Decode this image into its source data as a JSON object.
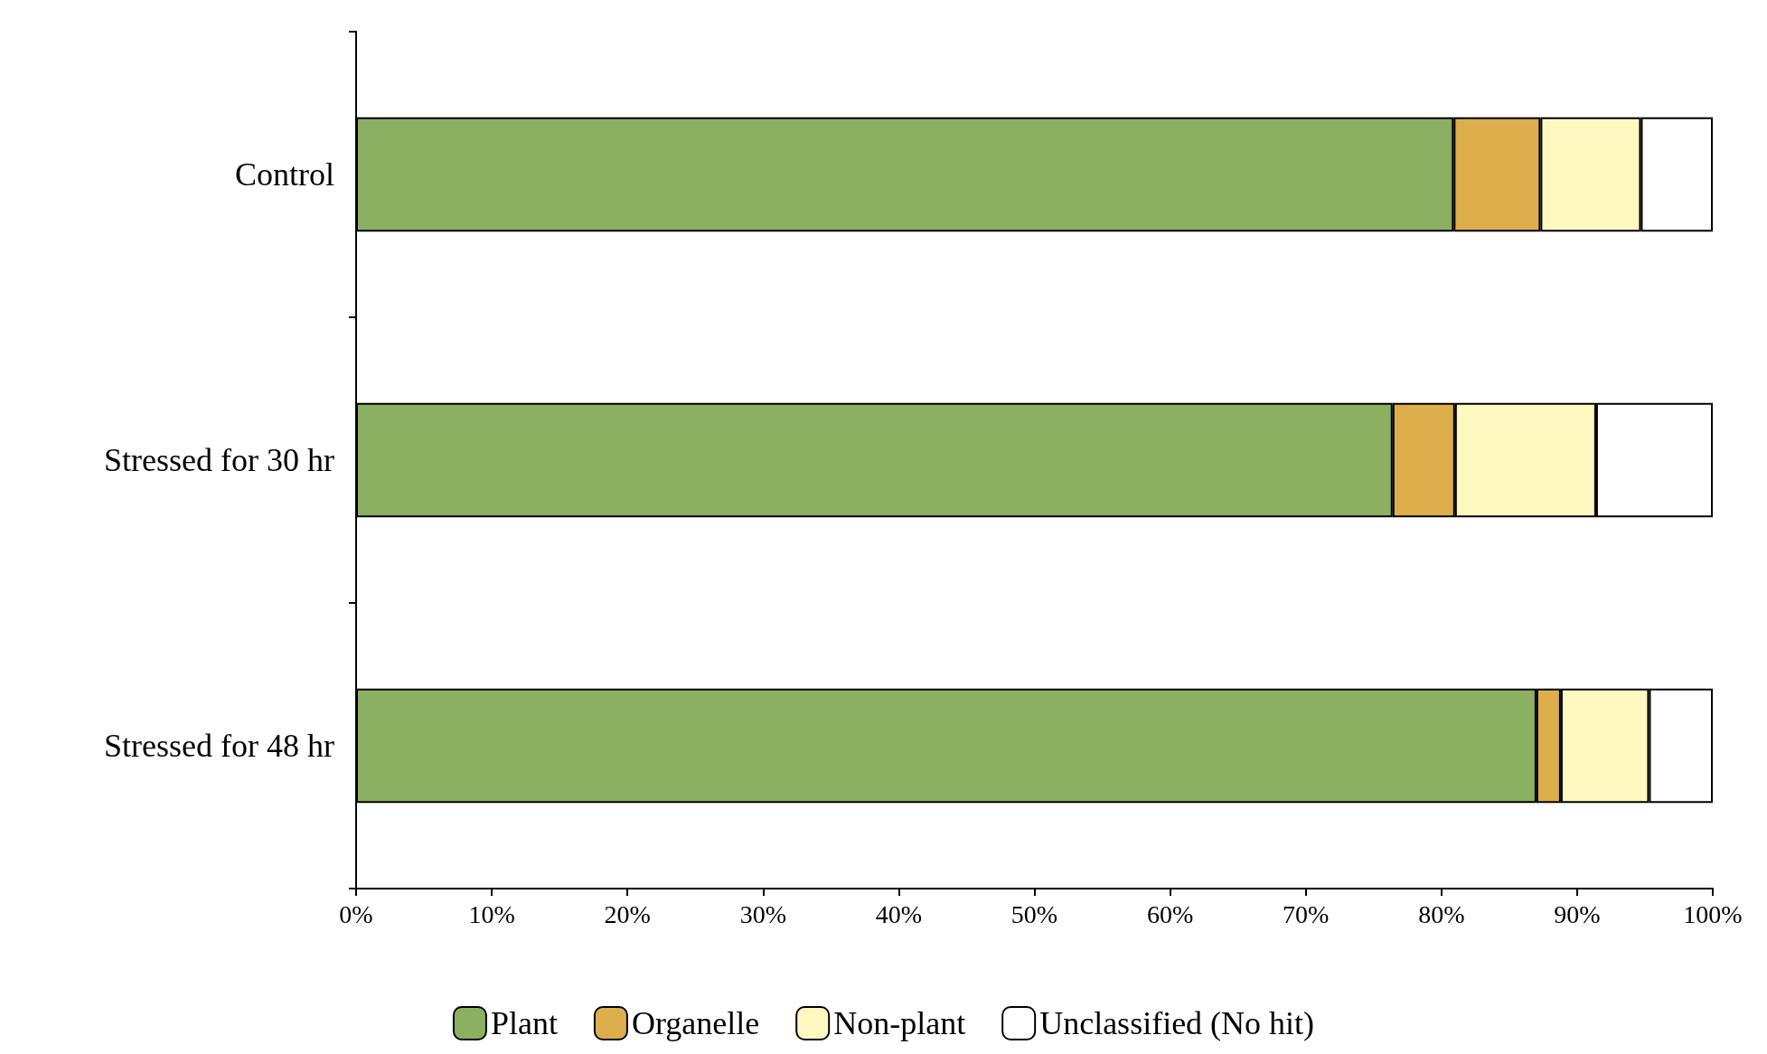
{
  "chart_data": {
    "type": "bar",
    "orientation": "horizontal",
    "stacked": true,
    "categories": [
      "Control",
      "Stressed for 30 hr",
      "Stressed for 48 hr"
    ],
    "series": [
      {
        "name": "Plant",
        "color": "#8bb061",
        "values": [
          80.9,
          76.4,
          87.0
        ]
      },
      {
        "name": "Organelle",
        "color": "#ddae4c",
        "values": [
          6.4,
          4.6,
          1.8
        ]
      },
      {
        "name": "Non-plant",
        "color": "#fff8c0",
        "values": [
          7.4,
          10.4,
          6.5
        ]
      },
      {
        "name": "Unclassified (No hit)",
        "color": "#ffffff",
        "values": [
          5.3,
          8.6,
          4.7
        ]
      }
    ],
    "xlim": [
      0,
      100
    ],
    "xticks": [
      {
        "value": 0,
        "label": "0%"
      },
      {
        "value": 10,
        "label": "10%"
      },
      {
        "value": 20,
        "label": "20%"
      },
      {
        "value": 30,
        "label": "30%"
      },
      {
        "value": 40,
        "label": "40%"
      },
      {
        "value": 50,
        "label": "50%"
      },
      {
        "value": 60,
        "label": "60%"
      },
      {
        "value": 70,
        "label": "70%"
      },
      {
        "value": 80,
        "label": "80%"
      },
      {
        "value": 90,
        "label": "90%"
      },
      {
        "value": 100,
        "label": "100%"
      }
    ],
    "grid": false,
    "legend": "bottom"
  }
}
